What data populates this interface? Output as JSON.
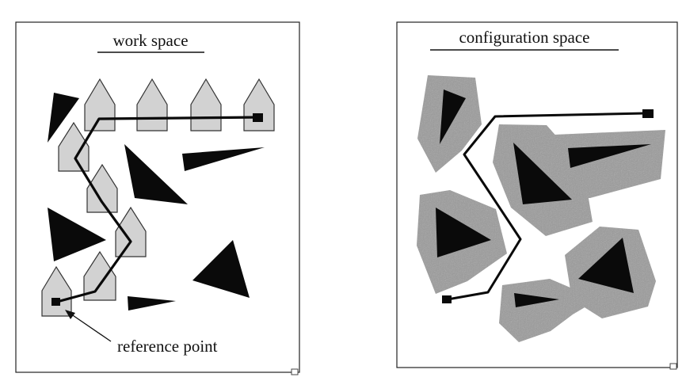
{
  "workspace": {
    "title": "work space",
    "annotation": "reference point",
    "colors": {
      "robot_fill": "#d2d2d2",
      "obstacle": "#0a0a0a",
      "path": "#0a0a0a"
    }
  },
  "configspace": {
    "title": "configuration space",
    "colors": {
      "grown_region": "#9a9a9a",
      "obstacle": "#0a0a0a",
      "path": "#0a0a0a"
    }
  }
}
